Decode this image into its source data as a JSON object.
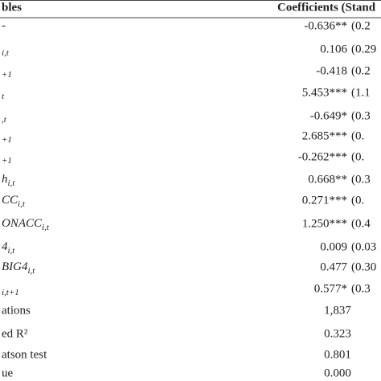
{
  "table": {
    "header": [
      "bles",
      "Coefficients (Stand"
    ],
    "rows": [
      {
        "label": "-",
        "sub": "",
        "coef": "-0.636**",
        "se": "(0.2"
      },
      {
        "label": "",
        "sub": "i,t",
        "coef": "0.106",
        "se": "(0.29"
      },
      {
        "label": "",
        "sub": "+1",
        "coef": "-0.418",
        "se": "(0.2"
      },
      {
        "label": "",
        "sub": "t",
        "coef": "5.453***",
        "se": "(1.1"
      },
      {
        "label": "",
        "sub": ",t",
        "coef": "-0.649*",
        "se": "(0.3"
      },
      {
        "label": "",
        "sub": "+1",
        "coef": "2.685***",
        "se": "(0."
      },
      {
        "label": "",
        "sub": "+1",
        "coef": "-0.262***",
        "se": "(0."
      },
      {
        "label": "h",
        "sub": "i,t",
        "coef": "0.668**",
        "se": "(0.3"
      },
      {
        "label": "CC",
        "sub": "i,t",
        "coef": "0.271***",
        "se": "(0."
      },
      {
        "label": "ONACC",
        "sub": "i,t",
        "coef": "1.250***",
        "se": "(0.4"
      },
      {
        "label": "4",
        "sub": "i,t",
        "coef": "0.009",
        "se": "(0.03"
      },
      {
        "label": "BIG4",
        "sub": "i,t",
        "coef": "0.477",
        "se": "(0.30"
      },
      {
        "label": "",
        "sub": "i,t+1",
        "coef": "0.577*",
        "se": "(0.3"
      }
    ],
    "stats": [
      {
        "label": "ations",
        "value": "1,837"
      },
      {
        "label": "ed R²",
        "value": "0.323"
      },
      {
        "label": "atson test",
        "value": "0.801"
      },
      {
        "label": "ue",
        "value": "0.000"
      }
    ]
  }
}
